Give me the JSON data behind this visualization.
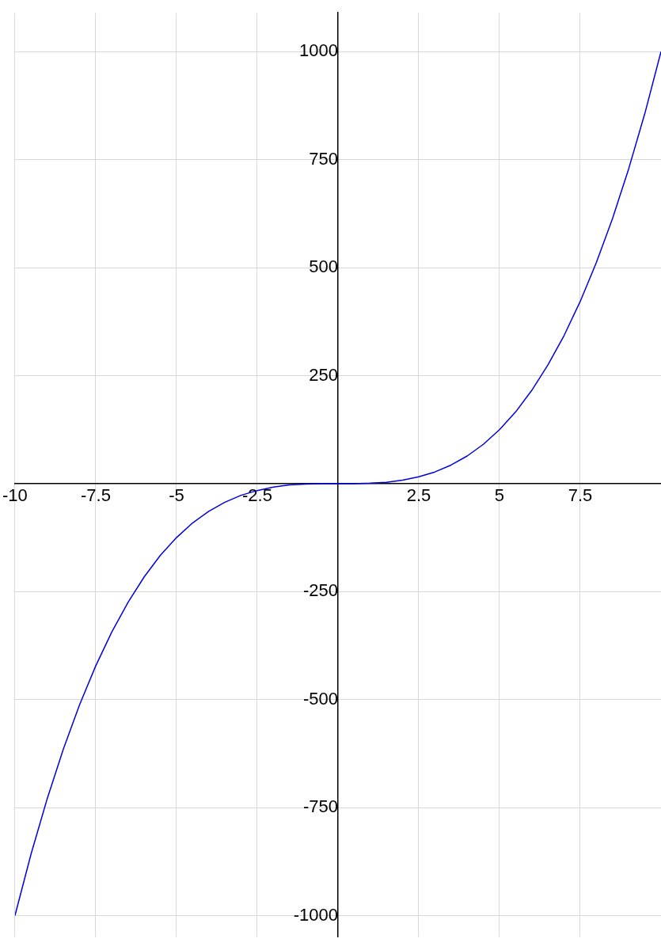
{
  "chart_data": {
    "type": "line",
    "x": [
      -10,
      -9.5,
      -9,
      -8.5,
      -8,
      -7.5,
      -7,
      -6.5,
      -6,
      -5.5,
      -5,
      -4.5,
      -4,
      -3.5,
      -3,
      -2.5,
      -2,
      -1.5,
      -1,
      -0.5,
      0,
      0.5,
      1,
      1.5,
      2,
      2.5,
      3,
      3.5,
      4,
      4.5,
      5,
      5.5,
      6,
      6.5,
      7,
      7.5,
      8,
      8.5,
      9,
      9.5,
      10
    ],
    "series": [
      {
        "color": "#0000e0",
        "values": [
          -1000,
          -857,
          -729,
          -614,
          -512,
          -422,
          -343,
          -275,
          -216,
          -166,
          -125,
          -91,
          -64,
          -43,
          -27,
          -16,
          -8,
          -3,
          -1,
          0,
          0,
          0,
          1,
          3,
          8,
          16,
          27,
          43,
          64,
          91,
          125,
          166,
          216,
          275,
          343,
          422,
          512,
          614,
          729,
          857,
          1000
        ]
      }
    ],
    "xlim": [
      -10,
      10
    ],
    "ylim": [
      -1050,
      1090
    ],
    "xticks": [
      -10,
      -7.5,
      -5,
      -2.5,
      2.5,
      5,
      7.5
    ],
    "yticks": [
      -1000,
      -750,
      -500,
      -250,
      250,
      500,
      750,
      1000
    ],
    "grid": true,
    "marker": "none",
    "line_style": "solid"
  }
}
